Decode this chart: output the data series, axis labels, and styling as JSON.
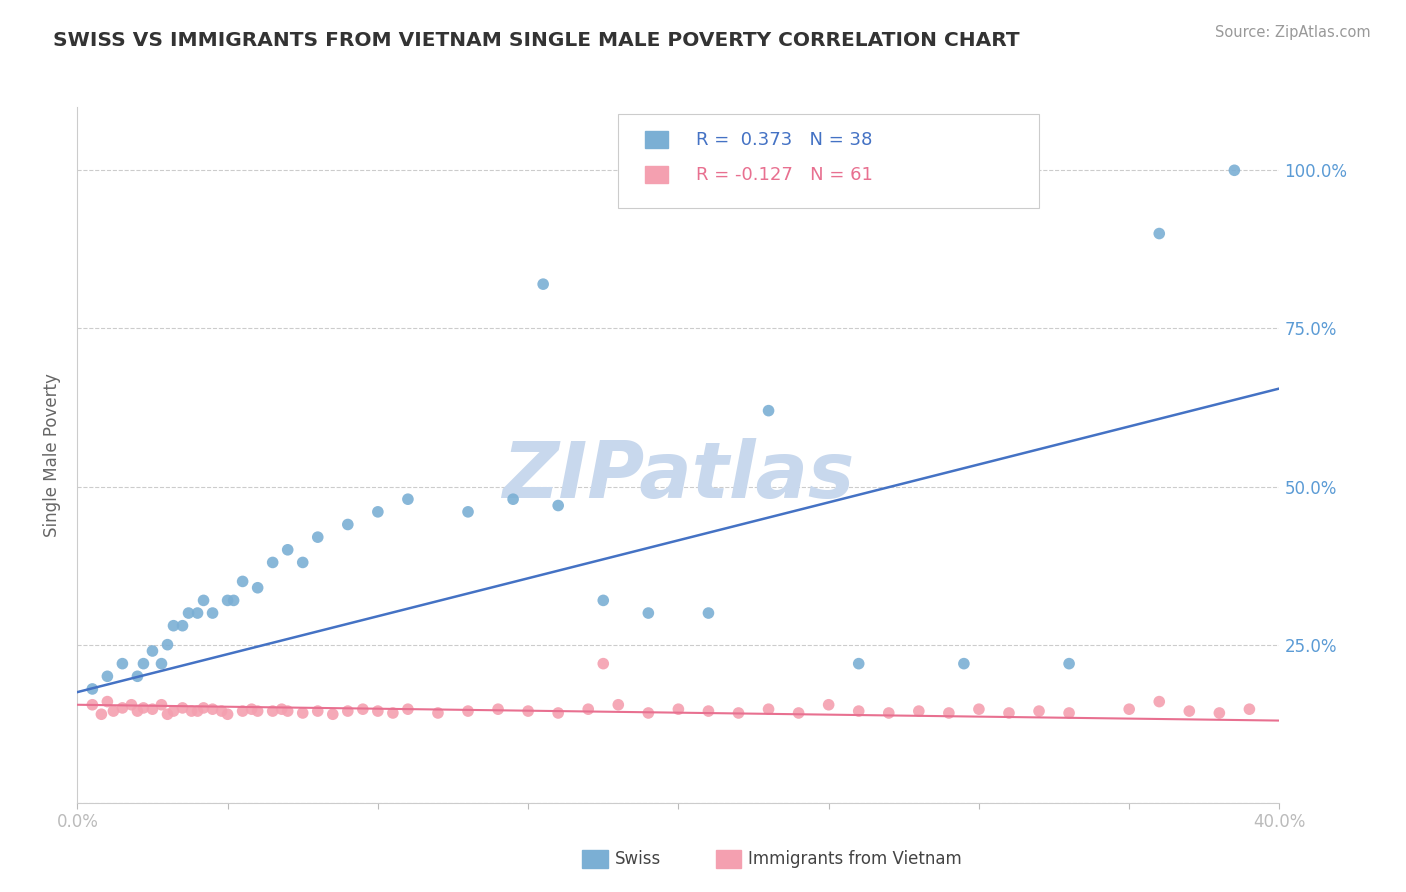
{
  "title": "SWISS VS IMMIGRANTS FROM VIETNAM SINGLE MALE POVERTY CORRELATION CHART",
  "source": "Source: ZipAtlas.com",
  "ylabel": "Single Male Poverty",
  "xlim": [
    0.0,
    0.4
  ],
  "ylim": [
    0.0,
    1.1
  ],
  "xticks": [
    0.0,
    0.05,
    0.1,
    0.15,
    0.2,
    0.25,
    0.3,
    0.35,
    0.4
  ],
  "xtick_labels": [
    "0.0%",
    "",
    "",
    "",
    "",
    "",
    "",
    "",
    "40.0%"
  ],
  "ytick_positions": [
    0.0,
    0.25,
    0.5,
    0.75,
    1.0
  ],
  "ytick_labels": [
    "",
    "25.0%",
    "50.0%",
    "75.0%",
    "100.0%"
  ],
  "right_ytick_color": "#5b9bd5",
  "watermark": "ZIPatlas",
  "watermark_color": "#c8d8ed",
  "swiss_color": "#7bafd4",
  "vietnam_color": "#f4a0b0",
  "swiss_line_color": "#4472c4",
  "vietnam_line_color": "#e87090",
  "swiss_R": 0.373,
  "swiss_N": 38,
  "vietnam_R": -0.127,
  "vietnam_N": 61,
  "legend_label_swiss": "Swiss",
  "legend_label_vietnam": "Immigrants from Vietnam",
  "swiss_scatter_x": [
    0.005,
    0.01,
    0.015,
    0.02,
    0.022,
    0.025,
    0.028,
    0.03,
    0.032,
    0.035,
    0.037,
    0.04,
    0.042,
    0.045,
    0.05,
    0.052,
    0.055,
    0.06,
    0.065,
    0.07,
    0.075,
    0.08,
    0.09,
    0.1,
    0.11,
    0.13,
    0.145,
    0.16,
    0.175,
    0.19,
    0.21,
    0.23,
    0.26,
    0.295,
    0.33,
    0.155,
    0.36,
    0.385
  ],
  "swiss_scatter_y": [
    0.18,
    0.2,
    0.22,
    0.2,
    0.22,
    0.24,
    0.22,
    0.25,
    0.28,
    0.28,
    0.3,
    0.3,
    0.32,
    0.3,
    0.32,
    0.32,
    0.35,
    0.34,
    0.38,
    0.4,
    0.38,
    0.42,
    0.44,
    0.46,
    0.48,
    0.46,
    0.48,
    0.47,
    0.32,
    0.3,
    0.3,
    0.62,
    0.22,
    0.22,
    0.22,
    0.82,
    0.9,
    1.0
  ],
  "vietnam_scatter_x": [
    0.005,
    0.008,
    0.01,
    0.012,
    0.015,
    0.018,
    0.02,
    0.022,
    0.025,
    0.028,
    0.03,
    0.032,
    0.035,
    0.038,
    0.04,
    0.042,
    0.045,
    0.048,
    0.05,
    0.055,
    0.058,
    0.06,
    0.065,
    0.068,
    0.07,
    0.075,
    0.08,
    0.085,
    0.09,
    0.095,
    0.1,
    0.105,
    0.11,
    0.12,
    0.13,
    0.14,
    0.15,
    0.16,
    0.17,
    0.18,
    0.19,
    0.2,
    0.21,
    0.22,
    0.23,
    0.24,
    0.25,
    0.26,
    0.27,
    0.28,
    0.29,
    0.3,
    0.31,
    0.32,
    0.33,
    0.35,
    0.36,
    0.37,
    0.38,
    0.39,
    0.175
  ],
  "vietnam_scatter_y": [
    0.155,
    0.14,
    0.16,
    0.145,
    0.15,
    0.155,
    0.145,
    0.15,
    0.148,
    0.155,
    0.14,
    0.145,
    0.15,
    0.145,
    0.145,
    0.15,
    0.148,
    0.145,
    0.14,
    0.145,
    0.148,
    0.145,
    0.145,
    0.148,
    0.145,
    0.142,
    0.145,
    0.14,
    0.145,
    0.148,
    0.145,
    0.142,
    0.148,
    0.142,
    0.145,
    0.148,
    0.145,
    0.142,
    0.148,
    0.155,
    0.142,
    0.148,
    0.145,
    0.142,
    0.148,
    0.142,
    0.155,
    0.145,
    0.142,
    0.145,
    0.142,
    0.148,
    0.142,
    0.145,
    0.142,
    0.148,
    0.16,
    0.145,
    0.142,
    0.148,
    0.22
  ],
  "swiss_trend_x": [
    0.0,
    0.4
  ],
  "swiss_trend_y": [
    0.175,
    0.655
  ],
  "vietnam_trend_x": [
    0.0,
    0.4
  ],
  "vietnam_trend_y": [
    0.155,
    0.13
  ]
}
